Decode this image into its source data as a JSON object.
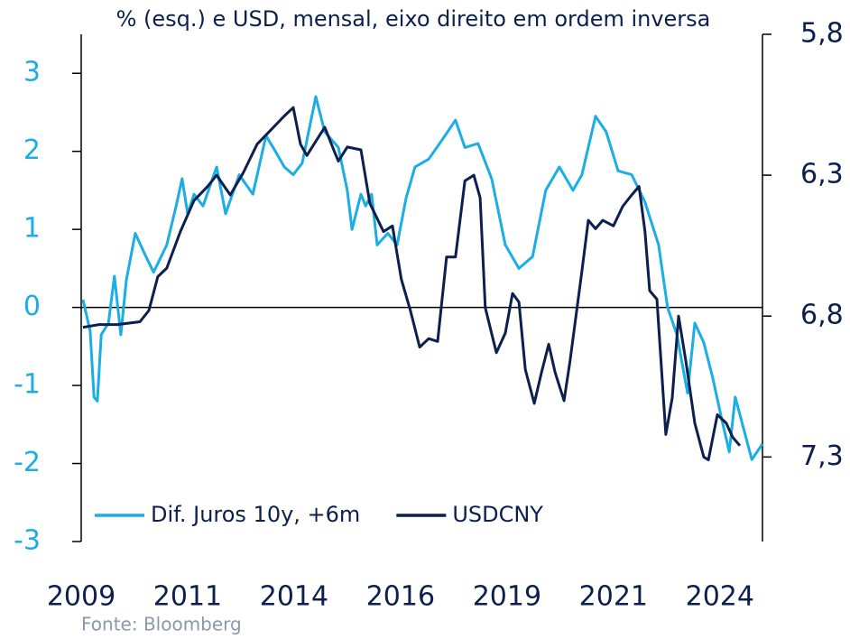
{
  "chart_data": {
    "type": "line",
    "title": "%  (esq.) e USD, mensal, eixo direito em ordem inversa",
    "source": "Fonte: Bloomberg",
    "xlim": [
      2009,
      2025
    ],
    "xticks": [
      2009,
      {
        "value": 2011.5,
        "label": "2011"
      },
      2014,
      {
        "value": 2016.5,
        "label": "2016"
      },
      2019,
      {
        "value": 2021.5,
        "label": "2021"
      },
      2024
    ],
    "ylim": [
      -3,
      3.5
    ],
    "yticks": [
      -3,
      -2,
      -1,
      0,
      1,
      2,
      3
    ],
    "y2lim": [
      5.8,
      7.6
    ],
    "y2_inverted": true,
    "y2ticks": [
      {
        "value": 5.8,
        "label": "5,8"
      },
      {
        "value": 6.3,
        "label": "6,3"
      },
      {
        "value": 6.8,
        "label": "6,8"
      },
      {
        "value": 7.3,
        "label": "7,3"
      }
    ],
    "legend": "lower left",
    "series": [
      {
        "name": "Dif. Juros 10y, +6m",
        "color": "#1aaee5",
        "x": [
          2009.04,
          2009.21,
          2009.3,
          2009.38,
          2009.47,
          2009.64,
          2009.78,
          2009.93,
          2010.06,
          2010.27,
          2010.48,
          2010.7,
          2011.01,
          2011.23,
          2011.37,
          2011.5,
          2011.65,
          2011.86,
          2012.18,
          2012.39,
          2012.71,
          2013.03,
          2013.34,
          2013.56,
          2013.77,
          2013.98,
          2014.19,
          2014.51,
          2014.72,
          2015.04,
          2015.25,
          2015.36,
          2015.57,
          2015.68,
          2015.82,
          2015.95,
          2016.2,
          2016.42,
          2016.63,
          2016.84,
          2017.16,
          2017.48,
          2017.79,
          2018.01,
          2018.32,
          2018.64,
          2018.96,
          2019.28,
          2019.6,
          2019.91,
          2020.23,
          2020.55,
          2020.76,
          2021.08,
          2021.33,
          2021.61,
          2021.93,
          2022.24,
          2022.56,
          2022.77,
          2022.99,
          2023.24,
          2023.41,
          2023.62,
          2023.83,
          2024.05,
          2024.22,
          2024.36,
          2024.58,
          2024.75,
          2025.0
        ],
        "values": [
          0.1,
          -0.3,
          -1.15,
          -1.2,
          -0.35,
          -0.2,
          0.4,
          -0.35,
          0.35,
          0.95,
          0.7,
          0.45,
          0.8,
          1.3,
          1.65,
          1.2,
          1.45,
          1.3,
          1.8,
          1.2,
          1.7,
          1.45,
          2.2,
          2.0,
          1.8,
          1.7,
          1.85,
          2.7,
          2.25,
          2.05,
          1.5,
          1.0,
          1.45,
          1.3,
          1.45,
          0.8,
          0.95,
          0.8,
          1.4,
          1.8,
          1.9,
          2.15,
          2.4,
          2.05,
          2.1,
          1.65,
          0.8,
          0.5,
          0.65,
          1.5,
          1.8,
          1.5,
          1.7,
          2.45,
          2.25,
          1.75,
          1.7,
          1.35,
          0.8,
          0,
          -0.35,
          -1.1,
          -0.2,
          -0.45,
          -0.9,
          -1.45,
          -1.85,
          -1.15,
          -1.6,
          -1.95,
          -1.75
        ]
      },
      {
        "name": "USDCNY",
        "color": "#0c1f4e",
        "axis": "y2",
        "x": [
          2009.04,
          2009.42,
          2009.85,
          2010.38,
          2010.59,
          2010.8,
          2011.01,
          2011.33,
          2011.65,
          2011.97,
          2012.18,
          2012.5,
          2012.81,
          2013.13,
          2013.45,
          2013.77,
          2013.98,
          2014.15,
          2014.3,
          2014.51,
          2014.72,
          2014.93,
          2015.04,
          2015.25,
          2015.57,
          2015.78,
          2016.1,
          2016.31,
          2016.52,
          2016.73,
          2016.95,
          2017.16,
          2017.37,
          2017.58,
          2017.79,
          2018.01,
          2018.22,
          2018.37,
          2018.49,
          2018.75,
          2018.96,
          2019.13,
          2019.28,
          2019.43,
          2019.64,
          2019.81,
          2019.98,
          2020.13,
          2020.34,
          2020.48,
          2020.76,
          2020.91,
          2021.08,
          2021.25,
          2021.5,
          2021.72,
          2021.93,
          2022.1,
          2022.24,
          2022.35,
          2022.52,
          2022.73,
          2022.88,
          2023.03,
          2023.2,
          2023.41,
          2023.62,
          2023.73,
          2023.94,
          2024.15,
          2024.3,
          2024.47
        ],
        "values": [
          6.84,
          6.83,
          6.83,
          6.82,
          6.78,
          6.66,
          6.63,
          6.5,
          6.39,
          6.34,
          6.3,
          6.37,
          6.29,
          6.19,
          6.14,
          6.09,
          6.06,
          6.19,
          6.23,
          6.18,
          6.13,
          6.21,
          6.25,
          6.2,
          6.21,
          6.4,
          6.5,
          6.48,
          6.67,
          6.78,
          6.91,
          6.88,
          6.89,
          6.59,
          6.59,
          6.32,
          6.3,
          6.38,
          6.77,
          6.93,
          6.86,
          6.72,
          6.75,
          6.99,
          7.11,
          7.0,
          6.9,
          7.0,
          7.1,
          6.96,
          6.64,
          6.46,
          6.49,
          6.46,
          6.48,
          6.41,
          6.37,
          6.34,
          6.5,
          6.71,
          6.74,
          7.22,
          7.09,
          6.8,
          6.96,
          7.18,
          7.3,
          7.31,
          7.15,
          7.18,
          7.23,
          7.26
        ]
      }
    ]
  }
}
